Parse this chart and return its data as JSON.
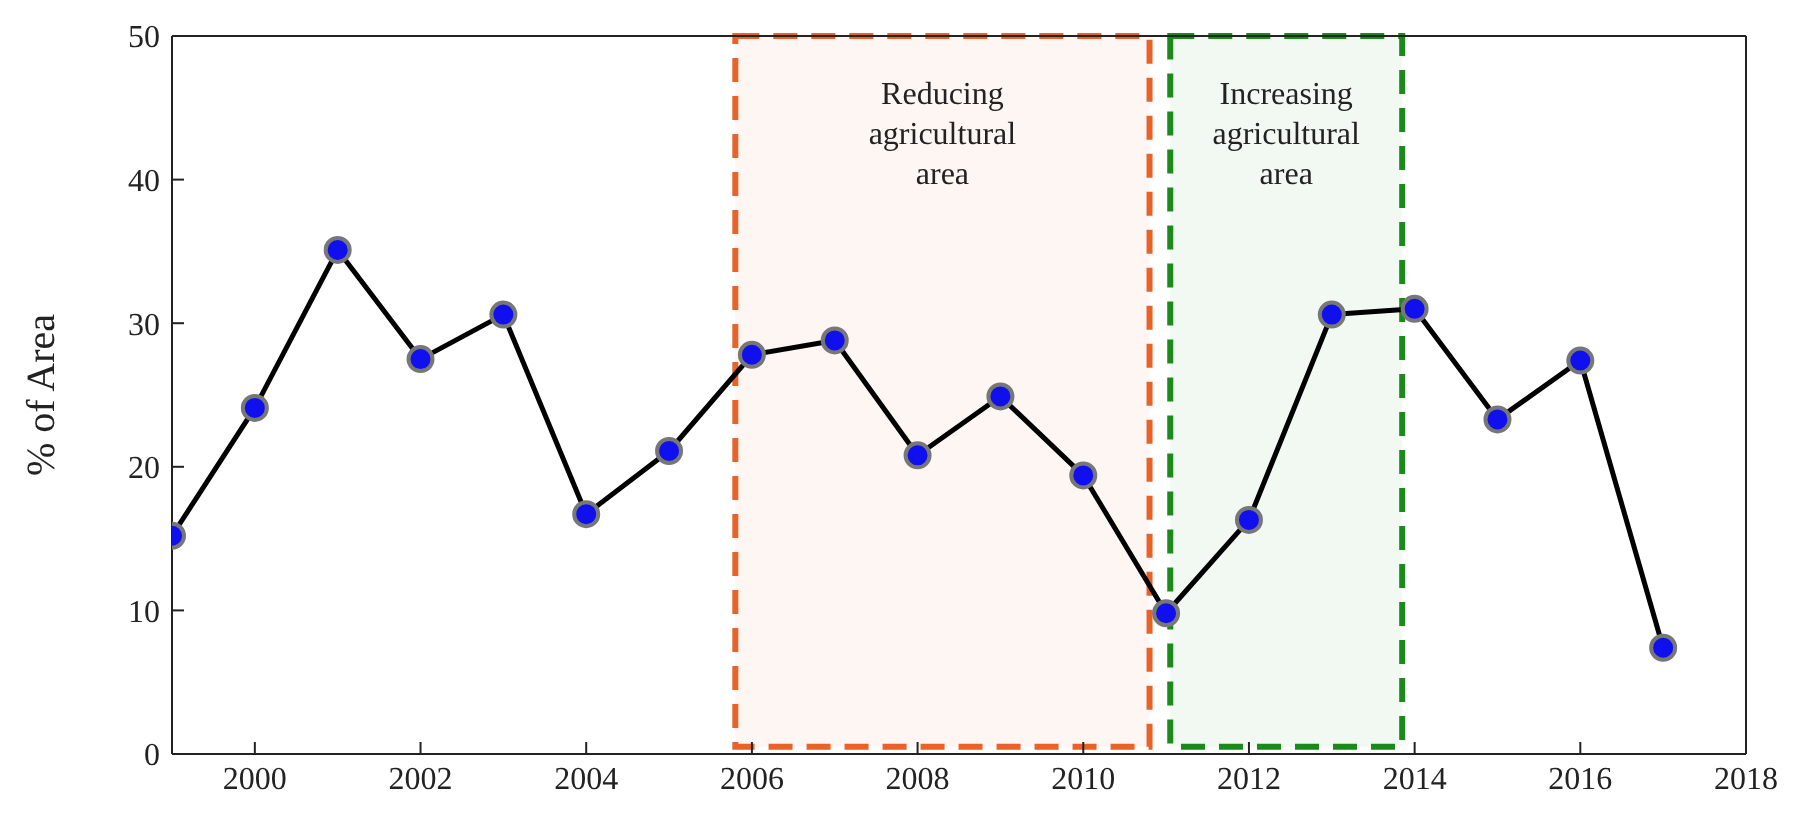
{
  "chart_data": {
    "type": "line",
    "ylabel": "% of Area",
    "x": [
      1999,
      2000,
      2001,
      2002,
      2003,
      2004,
      2005,
      2006,
      2007,
      2008,
      2009,
      2010,
      2011,
      2012,
      2013,
      2014,
      2015,
      2016,
      2017
    ],
    "series": [
      {
        "color": "#000000",
        "values": [
          15.2,
          24.1,
          35.1,
          27.5,
          30.6,
          16.7,
          21.1,
          27.8,
          28.8,
          20.8,
          24.9,
          19.4,
          9.8,
          16.3,
          30.6,
          31.0,
          23.3,
          27.4,
          7.4
        ]
      }
    ],
    "xlim": [
      1999,
      2018
    ],
    "xticks": [
      2000,
      2002,
      2004,
      2006,
      2008,
      2010,
      2012,
      2014,
      2016,
      2018
    ],
    "ylim": [
      0,
      50
    ],
    "yticks": [
      0,
      10,
      20,
      30,
      40,
      50
    ],
    "marker": "circle",
    "line_style": "solid",
    "grid": false,
    "legend": false,
    "bands": [
      {
        "axis": "x",
        "from": 2005.8,
        "to": 2010.8,
        "label": "Reducing agricultural area",
        "color": "#e8622a"
      },
      {
        "axis": "x",
        "from": 2011.05,
        "to": 2013.85,
        "label": "Increasing agricultural area",
        "color": "#1a8a1a"
      }
    ]
  }
}
